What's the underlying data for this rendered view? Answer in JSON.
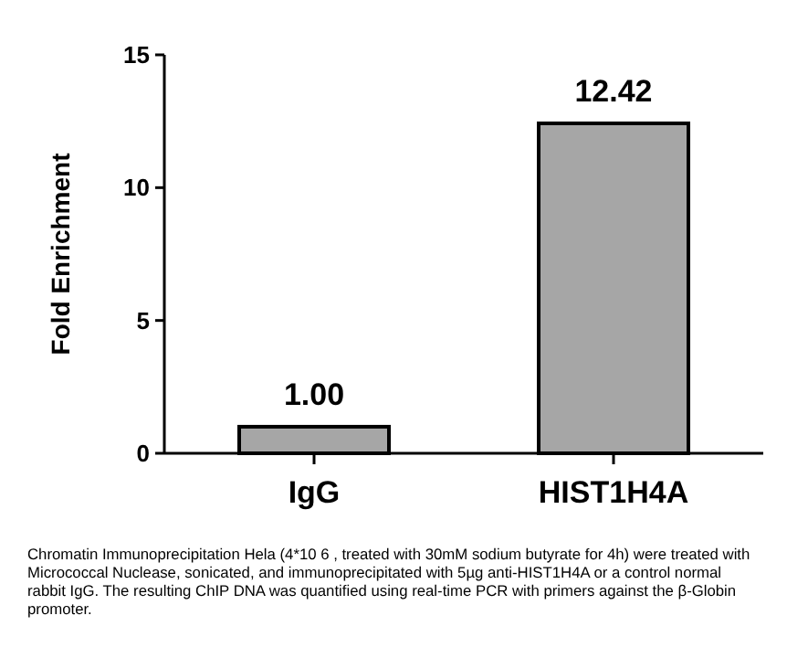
{
  "chart_data": {
    "type": "bar",
    "ylabel": "Fold Enrichment",
    "categories": [
      "IgG",
      "HIST1H4A"
    ],
    "values": [
      1.0,
      12.42
    ],
    "color": "#a6a6a6",
    "ylim": [
      0,
      15
    ],
    "yticks": [
      0,
      5,
      10,
      15
    ],
    "data_labels": true,
    "value_labels": [
      "1.00",
      "12.42"
    ],
    "annotations": [
      "Chromatin Immunoprecipitation Hela (4*10 6 , treated with 30mM sodium butyrate for 4h) were treated with Micrococcal Nuclease, sonicated, and immunoprecipitated with 5µg anti-HIST1H4A or a control normal rabbit IgG. The resulting ChIP DNA was quantified using real-time PCR with primers against the β-Globin promoter."
    ]
  }
}
